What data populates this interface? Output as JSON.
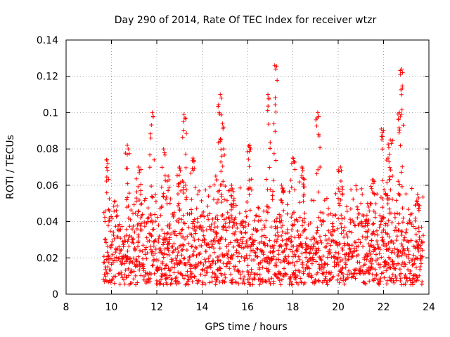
{
  "chart_data": {
    "type": "scatter",
    "title": "Day 290 of 2014, Rate Of TEC Index for receiver wtzr",
    "xlabel": "GPS time / hours",
    "ylabel": "ROTI / TECUs",
    "xlim": [
      8,
      24
    ],
    "ylim": [
      0,
      0.14
    ],
    "xticks": [
      "8",
      "10",
      "12",
      "14",
      "16",
      "18",
      "20",
      "22",
      "24"
    ],
    "yticks": [
      "0",
      "0.02",
      "0.04",
      "0.06",
      "0.08",
      "0.1",
      "0.12",
      "0.14"
    ],
    "grid": true,
    "marker": "+",
    "series": [
      {
        "name": "ROTI",
        "color": "#ff0000",
        "data_span_hours": [
          9.65,
          23.75
        ],
        "baseline_range": [
          0.005,
          0.03
        ],
        "peaks": [
          {
            "x": 9.8,
            "y": 0.074
          },
          {
            "x": 10.7,
            "y": 0.082
          },
          {
            "x": 11.2,
            "y": 0.07
          },
          {
            "x": 11.8,
            "y": 0.1
          },
          {
            "x": 12.3,
            "y": 0.08
          },
          {
            "x": 12.5,
            "y": 0.065
          },
          {
            "x": 13.0,
            "y": 0.07
          },
          {
            "x": 13.2,
            "y": 0.099
          },
          {
            "x": 13.6,
            "y": 0.075
          },
          {
            "x": 14.6,
            "y": 0.065
          },
          {
            "x": 14.8,
            "y": 0.11
          },
          {
            "x": 14.9,
            "y": 0.094
          },
          {
            "x": 15.3,
            "y": 0.06
          },
          {
            "x": 16.1,
            "y": 0.082
          },
          {
            "x": 16.9,
            "y": 0.11
          },
          {
            "x": 17.2,
            "y": 0.126
          },
          {
            "x": 17.5,
            "y": 0.06
          },
          {
            "x": 18.0,
            "y": 0.075
          },
          {
            "x": 18.4,
            "y": 0.07
          },
          {
            "x": 19.1,
            "y": 0.1
          },
          {
            "x": 20.1,
            "y": 0.07
          },
          {
            "x": 21.3,
            "y": 0.05
          },
          {
            "x": 21.5,
            "y": 0.063
          },
          {
            "x": 21.9,
            "y": 0.091
          },
          {
            "x": 22.2,
            "y": 0.075
          },
          {
            "x": 22.3,
            "y": 0.085
          },
          {
            "x": 22.7,
            "y": 0.1
          },
          {
            "x": 22.8,
            "y": 0.124
          },
          {
            "x": 23.5,
            "y": 0.055
          }
        ]
      }
    ]
  }
}
